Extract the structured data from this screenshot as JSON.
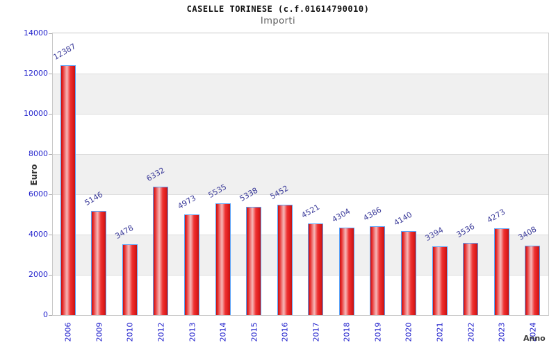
{
  "header": {
    "title": "CASELLE TORINESE (c.f.01614790010)",
    "subtitle": "Importi"
  },
  "chart_data": {
    "type": "bar",
    "title": "CASELLE TORINESE (c.f.01614790010)",
    "subtitle": "Importi",
    "xlabel": "Anno",
    "ylabel": "Euro",
    "categories": [
      "2006",
      "2009",
      "2010",
      "2012",
      "2013",
      "2014",
      "2015",
      "2016",
      "2017",
      "2018",
      "2019",
      "2020",
      "2021",
      "2022",
      "2023",
      "2024"
    ],
    "values": [
      12387,
      5146,
      3478,
      6332,
      4973,
      5535,
      5338,
      5452,
      4521,
      4304,
      4386,
      4140,
      3394,
      3536,
      4273,
      3408
    ],
    "ylim": [
      0,
      14000
    ],
    "yticks": [
      0,
      2000,
      4000,
      6000,
      8000,
      10000,
      12000,
      14000
    ],
    "legend": "none",
    "grid": "horizontal bands every 2000, alternating white and light gray",
    "value_labels": "above bars, rotated 30 degrees",
    "colors": {
      "bar_fill": "#e62626",
      "bar_highlight": "#f7b6b6",
      "bar_border": "#5aa2f7",
      "value_label": "#3a3a99",
      "tick_label": "#2020cc",
      "axis_title": "#333333",
      "band": "#f0f0f0",
      "plot_border": "#c8c8c8",
      "title_color": "#111111",
      "subtitle_color": "#5a5a5a"
    }
  }
}
